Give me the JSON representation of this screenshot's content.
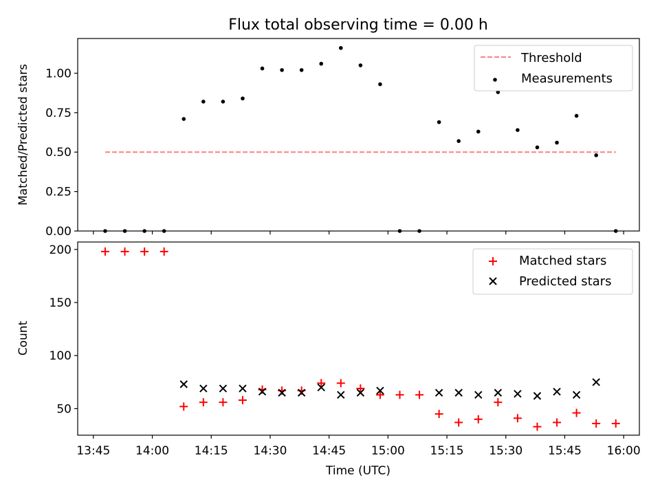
{
  "colors": {
    "threshold": "#ff7f7f",
    "measurement": "#000000",
    "matched": "#ff0000",
    "predicted": "#000000"
  },
  "chart_data": [
    {
      "type": "scatter",
      "title": "Flux total observing time = 0.00 h",
      "xlabel": "",
      "ylabel": "Matched/Predicted stars",
      "ylim": [
        0,
        1.22
      ],
      "xlim": [
        "13:41",
        "16:04"
      ],
      "yticks": [
        "0.00",
        "0.25",
        "0.50",
        "0.75",
        "1.00"
      ],
      "grid": false,
      "legend_position": "top-right",
      "legend": [
        "Threshold",
        "Measurements"
      ],
      "threshold": {
        "name": "Threshold",
        "y": 0.5,
        "x_start": "13:48",
        "x_end": "15:58",
        "style": "dashed"
      },
      "series": [
        {
          "name": "Measurements",
          "x": [
            "13:48",
            "13:53",
            "13:58",
            "14:03",
            "14:08",
            "14:13",
            "14:18",
            "14:23",
            "14:28",
            "14:33",
            "14:38",
            "14:43",
            "14:48",
            "14:53",
            "14:58",
            "15:03",
            "15:08",
            "15:13",
            "15:18",
            "15:23",
            "15:28",
            "15:33",
            "15:38",
            "15:43",
            "15:48",
            "15:53",
            "15:58"
          ],
          "y": [
            0,
            0,
            0,
            0,
            0.71,
            0.82,
            0.82,
            0.84,
            1.03,
            1.02,
            1.02,
            1.06,
            1.16,
            1.05,
            0.93,
            0,
            0,
            0.69,
            0.57,
            0.63,
            0.88,
            0.64,
            0.53,
            0.56,
            0.73,
            0.48,
            0
          ]
        }
      ]
    },
    {
      "type": "scatter",
      "title": "",
      "xlabel": "Time (UTC)",
      "ylabel": "Count",
      "ylim": [
        25,
        207
      ],
      "xlim": [
        "13:41",
        "16:04"
      ],
      "yticks": [
        "50",
        "100",
        "150",
        "200"
      ],
      "xticks": [
        "13:45",
        "14:00",
        "14:15",
        "14:30",
        "14:45",
        "15:00",
        "15:15",
        "15:30",
        "15:45",
        "16:00"
      ],
      "grid": false,
      "legend_position": "top-right",
      "legend": [
        "Matched stars",
        "Predicted stars"
      ],
      "series": [
        {
          "name": "Matched stars",
          "marker": "plus",
          "x": [
            "13:48",
            "13:53",
            "13:58",
            "14:03",
            "14:08",
            "14:13",
            "14:18",
            "14:23",
            "14:28",
            "14:33",
            "14:38",
            "14:43",
            "14:48",
            "14:53",
            "14:58",
            "15:03",
            "15:08",
            "15:13",
            "15:18",
            "15:23",
            "15:28",
            "15:33",
            "15:38",
            "15:43",
            "15:48",
            "15:53",
            "15:58"
          ],
          "y": [
            198,
            198,
            198,
            198,
            52,
            56,
            56,
            58,
            68,
            67,
            67,
            74,
            74,
            69,
            63,
            63,
            63,
            45,
            37,
            40,
            56,
            41,
            33,
            37,
            46,
            36,
            36
          ]
        },
        {
          "name": "Predicted stars",
          "marker": "x",
          "x": [
            "14:08",
            "14:13",
            "14:18",
            "14:23",
            "14:28",
            "14:33",
            "14:38",
            "14:43",
            "14:48",
            "14:53",
            "14:58",
            "15:13",
            "15:18",
            "15:23",
            "15:28",
            "15:33",
            "15:38",
            "15:43",
            "15:48",
            "15:53"
          ],
          "y": [
            73,
            69,
            69,
            69,
            66,
            65,
            65,
            70,
            63,
            65,
            67,
            65,
            65,
            63,
            65,
            64,
            62,
            66,
            63,
            75
          ]
        }
      ]
    }
  ]
}
